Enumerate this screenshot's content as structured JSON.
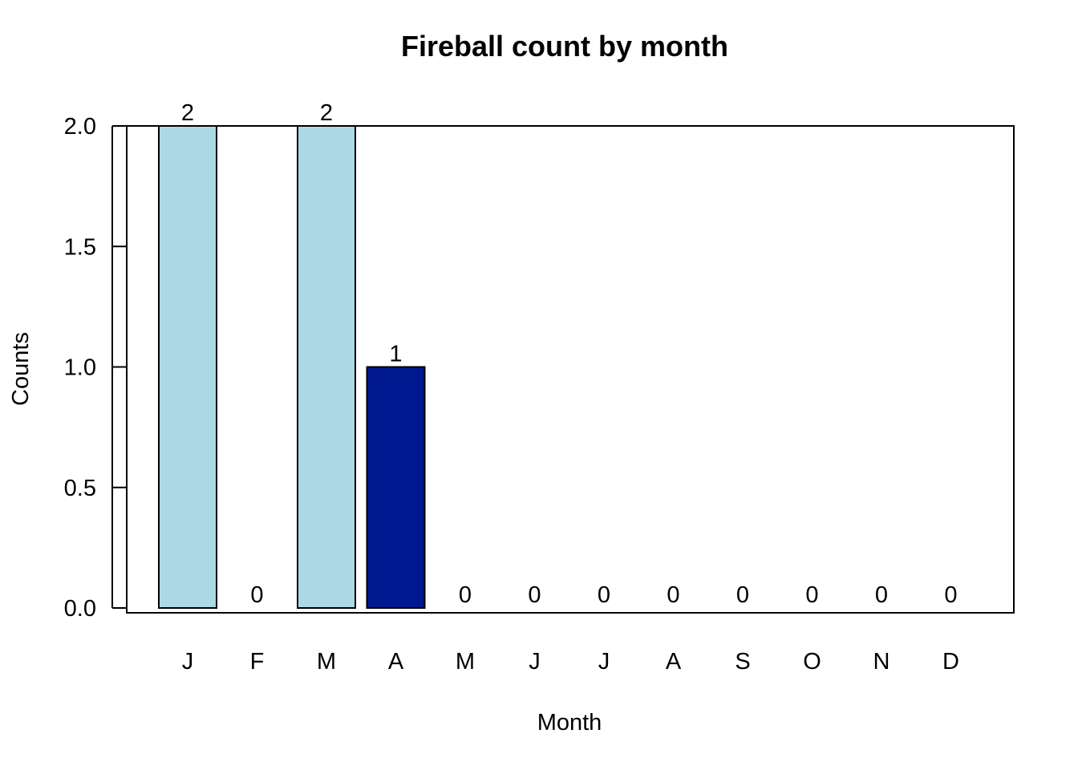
{
  "chart_data": {
    "type": "bar",
    "title": "Fireball count by month",
    "xlabel": "Month",
    "ylabel": "Counts",
    "categories": [
      "J",
      "F",
      "M",
      "A",
      "M",
      "J",
      "J",
      "A",
      "S",
      "O",
      "N",
      "D"
    ],
    "values": [
      2,
      0,
      2,
      1,
      0,
      0,
      0,
      0,
      0,
      0,
      0,
      0
    ],
    "data_labels": [
      "2",
      "0",
      "2",
      "1",
      "0",
      "0",
      "0",
      "0",
      "0",
      "0",
      "0",
      "0"
    ],
    "bar_colors": [
      "#add8e6",
      "#add8e6",
      "#add8e6",
      "#00188f",
      "#add8e6",
      "#add8e6",
      "#add8e6",
      "#add8e6",
      "#add8e6",
      "#add8e6",
      "#add8e6",
      "#add8e6"
    ],
    "ylim": [
      0,
      2
    ],
    "yticks": [
      0,
      0.5,
      1,
      1.5,
      2
    ],
    "ytick_labels": [
      "0.0",
      "0.5",
      "1.0",
      "1.5",
      "2.0"
    ],
    "grid": false,
    "box": true
  }
}
